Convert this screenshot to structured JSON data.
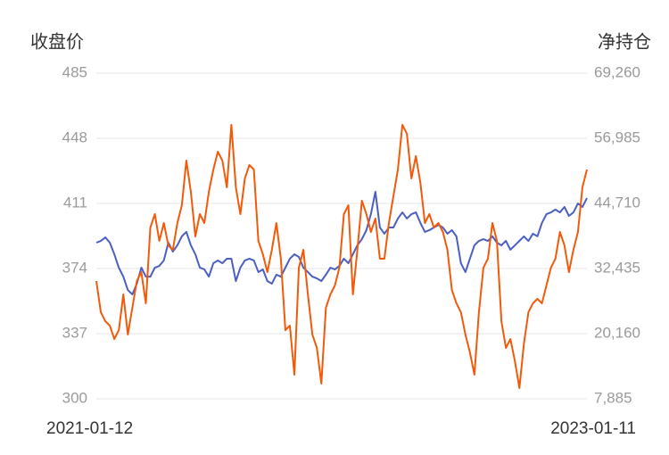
{
  "chart_data": {
    "type": "line",
    "y_label": "收盘价",
    "y2_label": "净持仓",
    "categories": [
      "2021-01-12",
      null,
      null,
      null,
      null,
      null,
      null,
      null,
      null,
      null,
      null,
      null,
      null,
      null,
      null,
      null,
      null,
      null,
      null,
      null,
      null,
      null,
      null,
      null,
      null,
      null,
      null,
      null,
      null,
      null,
      null,
      null,
      null,
      null,
      null,
      null,
      null,
      null,
      null,
      null,
      null,
      null,
      null,
      null,
      null,
      null,
      null,
      null,
      null,
      null,
      null,
      null,
      null,
      null,
      null,
      null,
      null,
      null,
      null,
      null,
      null,
      null,
      null,
      null,
      null,
      null,
      null,
      null,
      null,
      null,
      null,
      null,
      null,
      null,
      null,
      null,
      null,
      null,
      null,
      null,
      null,
      null,
      null,
      null,
      null,
      null,
      null,
      null,
      null,
      null,
      null,
      null,
      null,
      null,
      null,
      null,
      null,
      null,
      null,
      null,
      null,
      null,
      null,
      null,
      null,
      null,
      null,
      null,
      null,
      "2023-01-11"
    ],
    "series": [
      {
        "color": "#4a5fc1",
        "values": [
          388.7,
          389.7,
          391.7,
          388.7,
          382.1,
          374.5,
          369.4,
          361.8,
          359.3,
          365.4,
          374.5,
          369.4,
          369.4,
          374.5,
          375.5,
          378.6,
          388.7,
          383.6,
          387.2,
          392.3,
          394.8,
          387.2,
          382.1,
          374.5,
          373.5,
          369.4,
          377,
          378.6,
          377,
          379.6,
          379.6,
          366.9,
          374.5,
          378.6,
          379.6,
          378.6,
          372,
          373.5,
          366.9,
          365.4,
          370.5,
          369.4,
          374.5,
          379.6,
          382.1,
          380.6,
          374.5,
          372,
          369.4,
          368.4,
          366.9,
          370.5,
          374.5,
          373.5,
          375.5,
          379.6,
          377,
          382.1,
          387.2,
          390.7,
          395.8,
          404.9,
          417.6,
          397.3,
          393.8,
          397.3,
          397.3,
          402.4,
          405.9,
          402.4,
          404.9,
          405.9,
          399.9,
          394.8,
          395.8,
          397.3,
          398.8,
          397.3,
          393.8,
          395.8,
          392.3,
          377,
          372,
          379.6,
          387.2,
          389.7,
          390.7,
          389.7,
          392.3,
          388.7,
          387.2,
          389.7,
          384.7,
          387.2,
          389.7,
          392.3,
          389.7,
          393.8,
          392.3,
          399.9,
          404.9,
          405.9,
          407.5,
          405.9,
          409,
          403.9,
          405.9,
          411,
          409,
          414
        ]
      },
      {
        "color": "#f25a0a",
        "axis": "y2",
        "values": [
          30080,
          24200,
          22510,
          21670,
          19150,
          20830,
          27560,
          19990,
          25040,
          30080,
          31760,
          25880,
          40170,
          42690,
          37650,
          41010,
          36810,
          35970,
          41010,
          44370,
          52780,
          46900,
          38490,
          42690,
          41010,
          46900,
          51100,
          54460,
          52780,
          47740,
          59510,
          47740,
          42690,
          49420,
          51940,
          51100,
          37650,
          35130,
          31760,
          35970,
          41010,
          34290,
          20830,
          21670,
          12430,
          32600,
          35970,
          27560,
          19990,
          17470,
          10740,
          25040,
          27560,
          29240,
          32600,
          42690,
          44370,
          27560,
          35970,
          45220,
          42690,
          39330,
          41850,
          34290,
          34290,
          41010,
          46060,
          51100,
          59510,
          57830,
          49420,
          53620,
          48580,
          41010,
          42690,
          40170,
          41010,
          39330,
          35970,
          28400,
          25880,
          24200,
          19990,
          16630,
          12430,
          24200,
          32600,
          34290,
          41010,
          37650,
          22510,
          17470,
          19150,
          14950,
          9900,
          18310,
          24200,
          25880,
          26720,
          25880,
          29240,
          32600,
          34290,
          39330,
          36810,
          31760,
          35970,
          39330,
          47740,
          51100
        ]
      }
    ],
    "ylim": [
      300,
      485
    ],
    "yticks": [
      300,
      337,
      374,
      411,
      448,
      485
    ],
    "y2lim": [
      7885,
      69260
    ],
    "y2ticks": [
      {
        "value": 7885,
        "label": "7,885"
      },
      {
        "value": 20160,
        "label": "20,160"
      },
      {
        "value": 32435,
        "label": "32,435"
      },
      {
        "value": 44710,
        "label": "44,710"
      },
      {
        "value": 56985,
        "label": "56,985"
      },
      {
        "value": 69260,
        "label": "69,260"
      }
    ],
    "grid": true
  }
}
